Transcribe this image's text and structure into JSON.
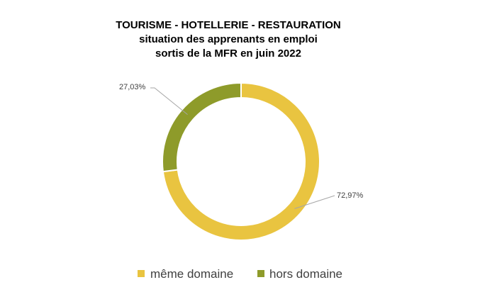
{
  "chart_data": {
    "type": "pie",
    "variant": "donut",
    "title_lines": [
      "TOURISME - HOTELLERIE - RESTAURATION",
      "situation des apprenants en emploi",
      "sortis de la MFR en juin 2022"
    ],
    "slices": [
      {
        "name": "même domaine",
        "value": 72.97,
        "label": "72,97%",
        "color": "#E9C440"
      },
      {
        "name": "hors domaine",
        "value": 27.03,
        "label": "27,03%",
        "color": "#8E9B2A"
      }
    ],
    "legend_position": "bottom"
  }
}
